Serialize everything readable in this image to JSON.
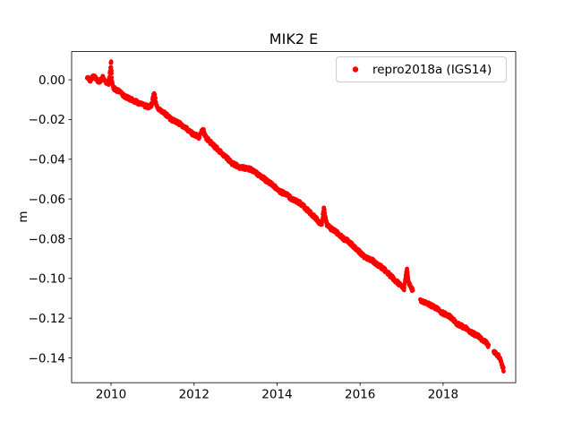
{
  "figure": {
    "background": "#ffffff"
  },
  "chart_data": {
    "type": "scatter",
    "title": "MIK2 E",
    "xlabel": "",
    "ylabel": "m",
    "xlim": [
      2009.05,
      2019.75
    ],
    "ylim": [
      -0.1525,
      0.0142
    ],
    "grid": false,
    "xticks": {
      "values": [
        2010,
        2012,
        2014,
        2016,
        2018
      ],
      "labels": [
        "2010",
        "2012",
        "2014",
        "2016",
        "2018"
      ]
    },
    "yticks": {
      "values": [
        0.0,
        -0.02,
        -0.04,
        -0.06,
        -0.08,
        -0.1,
        -0.12,
        -0.14
      ],
      "labels": [
        "0.00",
        "−0.02",
        "−0.04",
        "−0.06",
        "−0.08",
        "−0.10",
        "−0.12",
        "−0.14"
      ]
    },
    "legend": {
      "position": "upper right",
      "entries": [
        {
          "label": "repro2018a (IGS14)",
          "marker": "dot",
          "color": "#ff0000"
        }
      ]
    },
    "series": [
      {
        "name": "repro2018a (IGS14)",
        "color": "#ff0000",
        "marker": "point",
        "segments": [
          [
            [
              2009.42,
              0.001
            ],
            [
              2009.5,
              0.0
            ],
            [
              2009.58,
              0.002
            ],
            [
              2009.65,
              0.0
            ],
            [
              2009.72,
              -0.001
            ],
            [
              2009.8,
              0.001
            ],
            [
              2009.88,
              -0.001
            ],
            [
              2009.94,
              -0.002
            ],
            [
              2009.97,
              0.003
            ],
            [
              2010.0,
              0.009
            ],
            [
              2010.01,
              0.004
            ],
            [
              2010.03,
              -0.002
            ],
            [
              2010.06,
              -0.004
            ],
            [
              2010.12,
              -0.005
            ],
            [
              2010.2,
              -0.006
            ],
            [
              2010.3,
              -0.008
            ],
            [
              2010.4,
              -0.009
            ],
            [
              2010.5,
              -0.01
            ],
            [
              2010.6,
              -0.011
            ],
            [
              2010.7,
              -0.012
            ],
            [
              2010.8,
              -0.013
            ],
            [
              2010.9,
              -0.0135
            ],
            [
              2010.97,
              -0.013
            ],
            [
              2011.02,
              -0.008
            ],
            [
              2011.05,
              -0.007
            ],
            [
              2011.08,
              -0.012
            ],
            [
              2011.15,
              -0.015
            ],
            [
              2011.25,
              -0.016
            ],
            [
              2011.35,
              -0.018
            ],
            [
              2011.45,
              -0.02
            ],
            [
              2011.55,
              -0.021
            ],
            [
              2011.65,
              -0.022
            ],
            [
              2011.75,
              -0.024
            ],
            [
              2011.85,
              -0.025
            ],
            [
              2011.95,
              -0.027
            ],
            [
              2012.05,
              -0.028
            ],
            [
              2012.12,
              -0.029
            ],
            [
              2012.18,
              -0.026
            ],
            [
              2012.22,
              -0.025
            ],
            [
              2012.26,
              -0.028
            ],
            [
              2012.32,
              -0.03
            ],
            [
              2012.42,
              -0.032
            ],
            [
              2012.52,
              -0.034
            ],
            [
              2012.62,
              -0.036
            ],
            [
              2012.72,
              -0.038
            ],
            [
              2012.82,
              -0.04
            ],
            [
              2012.92,
              -0.042
            ],
            [
              2013.0,
              -0.043
            ],
            [
              2013.1,
              -0.044
            ],
            [
              2013.22,
              -0.0445
            ],
            [
              2013.35,
              -0.045
            ],
            [
              2013.45,
              -0.046
            ],
            [
              2013.55,
              -0.048
            ],
            [
              2013.65,
              -0.049
            ],
            [
              2013.75,
              -0.051
            ],
            [
              2013.85,
              -0.052
            ],
            [
              2013.95,
              -0.054
            ],
            [
              2014.05,
              -0.056
            ],
            [
              2014.15,
              -0.057
            ],
            [
              2014.25,
              -0.058
            ],
            [
              2014.35,
              -0.06
            ],
            [
              2014.45,
              -0.061
            ],
            [
              2014.55,
              -0.062
            ],
            [
              2014.65,
              -0.064
            ],
            [
              2014.75,
              -0.066
            ],
            [
              2014.85,
              -0.068
            ],
            [
              2014.95,
              -0.07
            ],
            [
              2015.03,
              -0.072
            ],
            [
              2015.08,
              -0.073
            ],
            [
              2015.11,
              -0.067
            ],
            [
              2015.13,
              -0.064
            ],
            [
              2015.16,
              -0.069
            ],
            [
              2015.2,
              -0.073
            ],
            [
              2015.3,
              -0.075
            ],
            [
              2015.4,
              -0.076
            ],
            [
              2015.5,
              -0.078
            ],
            [
              2015.6,
              -0.08
            ],
            [
              2015.7,
              -0.081
            ],
            [
              2015.8,
              -0.083
            ],
            [
              2015.9,
              -0.085
            ],
            [
              2016.0,
              -0.087
            ],
            [
              2016.1,
              -0.089
            ],
            [
              2016.2,
              -0.09
            ],
            [
              2016.3,
              -0.091
            ],
            [
              2016.4,
              -0.093
            ],
            [
              2016.5,
              -0.094
            ],
            [
              2016.6,
              -0.096
            ],
            [
              2016.7,
              -0.098
            ],
            [
              2016.8,
              -0.1
            ],
            [
              2016.9,
              -0.102
            ],
            [
              2017.0,
              -0.104
            ],
            [
              2017.06,
              -0.105
            ],
            [
              2017.1,
              -0.099
            ],
            [
              2017.13,
              -0.095
            ],
            [
              2017.16,
              -0.1
            ],
            [
              2017.2,
              -0.104
            ],
            [
              2017.27,
              -0.106
            ]
          ],
          [
            [
              2017.45,
              -0.111
            ],
            [
              2017.55,
              -0.112
            ],
            [
              2017.65,
              -0.113
            ],
            [
              2017.75,
              -0.114
            ],
            [
              2017.85,
              -0.115
            ],
            [
              2017.95,
              -0.117
            ],
            [
              2018.05,
              -0.118
            ],
            [
              2018.15,
              -0.119
            ],
            [
              2018.25,
              -0.121
            ],
            [
              2018.35,
              -0.123
            ],
            [
              2018.45,
              -0.124
            ],
            [
              2018.55,
              -0.125
            ],
            [
              2018.65,
              -0.127
            ],
            [
              2018.75,
              -0.128
            ],
            [
              2018.85,
              -0.129
            ],
            [
              2018.95,
              -0.131
            ],
            [
              2019.02,
              -0.132
            ],
            [
              2019.1,
              -0.134
            ]
          ],
          [
            [
              2019.22,
              -0.137
            ],
            [
              2019.28,
              -0.138
            ],
            [
              2019.33,
              -0.139
            ],
            [
              2019.38,
              -0.141
            ],
            [
              2019.42,
              -0.144
            ],
            [
              2019.46,
              -0.146
            ]
          ]
        ]
      }
    ]
  }
}
